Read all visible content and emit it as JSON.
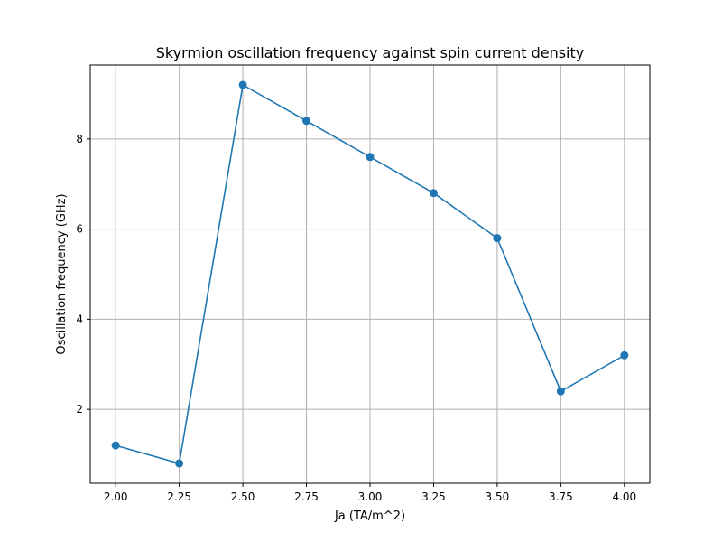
{
  "chart_data": {
    "type": "line",
    "title": "Skyrmion oscillation frequency against spin current density",
    "xlabel": "Ja (TA/m^2)",
    "ylabel": "Oscillation frequency (GHz)",
    "x": [
      2.0,
      2.25,
      2.5,
      2.75,
      3.0,
      3.25,
      3.5,
      3.75,
      4.0
    ],
    "series": [
      {
        "values": [
          1.2,
          0.8,
          9.2,
          8.4,
          7.6,
          6.8,
          5.8,
          2.4,
          3.2
        ]
      }
    ],
    "xlim": [
      1.9,
      4.1
    ],
    "ylim": [
      0.36,
      9.64
    ],
    "xticks": [
      2.0,
      2.25,
      2.5,
      2.75,
      3.0,
      3.25,
      3.5,
      3.75,
      4.0
    ],
    "xtick_labels": [
      "2.00",
      "2.25",
      "2.50",
      "2.75",
      "3.00",
      "3.25",
      "3.50",
      "3.75",
      "4.00"
    ],
    "yticks": [
      2,
      4,
      6,
      8
    ],
    "ytick_labels": [
      "2",
      "4",
      "6",
      "8"
    ],
    "grid": true,
    "marker": "circle",
    "color": "#1f77b4"
  }
}
